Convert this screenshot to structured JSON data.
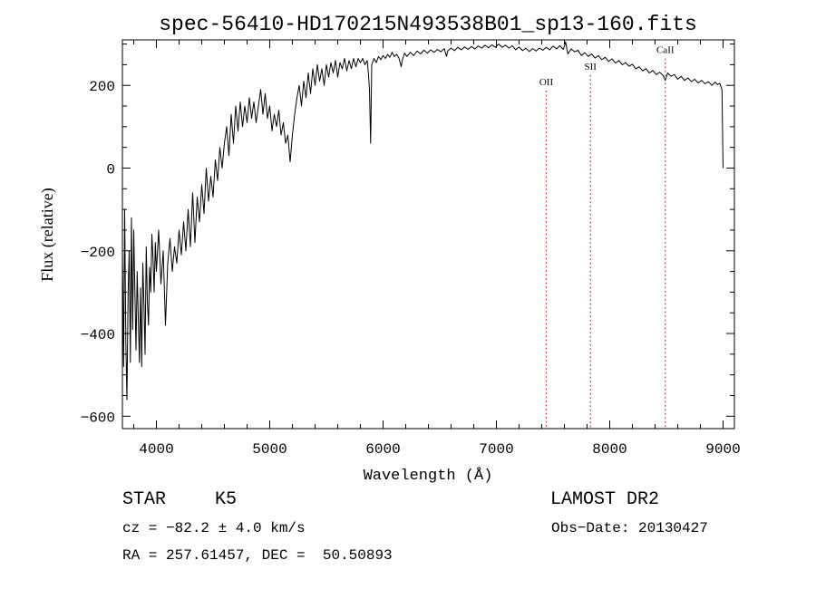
{
  "chart_data": {
    "type": "line",
    "title": "spec-56410-HD170215N493538B01_sp13-160.fits",
    "xlabel": "Wavelength (Å)",
    "ylabel": "Flux (relative)",
    "xlim": [
      3700,
      9100
    ],
    "ylim": [
      -630,
      310
    ],
    "x_ticks": [
      4000,
      5000,
      6000,
      7000,
      8000,
      9000
    ],
    "x_tick_labels": [
      "4000",
      "5000",
      "6000",
      "7000",
      "8000",
      "9000"
    ],
    "y_ticks": [
      -600,
      -400,
      -200,
      0,
      200
    ],
    "y_tick_labels": [
      "−600",
      "−400",
      "−200",
      "0",
      "200"
    ],
    "series": [
      {
        "values": [
          [
            3700,
            -200
          ],
          [
            3710,
            -480
          ],
          [
            3720,
            -100
          ],
          [
            3730,
            -420
          ],
          [
            3740,
            -560
          ],
          [
            3750,
            -300
          ],
          [
            3760,
            -200
          ],
          [
            3770,
            -470
          ],
          [
            3780,
            -120
          ],
          [
            3790,
            -390
          ],
          [
            3800,
            -150
          ],
          [
            3810,
            -300
          ],
          [
            3820,
            -440
          ],
          [
            3830,
            -250
          ],
          [
            3840,
            -360
          ],
          [
            3850,
            -470
          ],
          [
            3860,
            -290
          ],
          [
            3870,
            -480
          ],
          [
            3880,
            -230
          ],
          [
            3890,
            -330
          ],
          [
            3900,
            -450
          ],
          [
            3910,
            -190
          ],
          [
            3920,
            -320
          ],
          [
            3930,
            -380
          ],
          [
            3940,
            -240
          ],
          [
            3950,
            -300
          ],
          [
            3960,
            -160
          ],
          [
            3970,
            -220
          ],
          [
            3980,
            -300
          ],
          [
            3990,
            -180
          ],
          [
            4000,
            -250
          ],
          [
            4020,
            -150
          ],
          [
            4040,
            -280
          ],
          [
            4060,
            -200
          ],
          [
            4080,
            -380
          ],
          [
            4100,
            -230
          ],
          [
            4120,
            -170
          ],
          [
            4140,
            -250
          ],
          [
            4160,
            -190
          ],
          [
            4180,
            -230
          ],
          [
            4200,
            -150
          ],
          [
            4220,
            -210
          ],
          [
            4240,
            -130
          ],
          [
            4260,
            -200
          ],
          [
            4280,
            -100
          ],
          [
            4300,
            -190
          ],
          [
            4320,
            -60
          ],
          [
            4340,
            -180
          ],
          [
            4360,
            -70
          ],
          [
            4380,
            -130
          ],
          [
            4400,
            -40
          ],
          [
            4420,
            -110
          ],
          [
            4440,
            0
          ],
          [
            4460,
            -80
          ],
          [
            4480,
            -20
          ],
          [
            4500,
            -70
          ],
          [
            4520,
            20
          ],
          [
            4540,
            -30
          ],
          [
            4560,
            50
          ],
          [
            4580,
            0
          ],
          [
            4600,
            60
          ],
          [
            4620,
            100
          ],
          [
            4640,
            30
          ],
          [
            4660,
            130
          ],
          [
            4680,
            60
          ],
          [
            4700,
            150
          ],
          [
            4720,
            90
          ],
          [
            4740,
            160
          ],
          [
            4760,
            100
          ],
          [
            4780,
            150
          ],
          [
            4800,
            110
          ],
          [
            4820,
            170
          ],
          [
            4840,
            120
          ],
          [
            4860,
            160
          ],
          [
            4880,
            110
          ],
          [
            4900,
            150
          ],
          [
            4920,
            190
          ],
          [
            4940,
            130
          ],
          [
            4960,
            180
          ],
          [
            4980,
            120
          ],
          [
            5000,
            150
          ],
          [
            5020,
            90
          ],
          [
            5040,
            130
          ],
          [
            5060,
            100
          ],
          [
            5080,
            140
          ],
          [
            5100,
            80
          ],
          [
            5120,
            110
          ],
          [
            5140,
            60
          ],
          [
            5160,
            80
          ],
          [
            5180,
            15
          ],
          [
            5200,
            80
          ],
          [
            5220,
            130
          ],
          [
            5240,
            170
          ],
          [
            5260,
            200
          ],
          [
            5280,
            150
          ],
          [
            5300,
            210
          ],
          [
            5320,
            170
          ],
          [
            5340,
            230
          ],
          [
            5360,
            180
          ],
          [
            5380,
            240
          ],
          [
            5400,
            200
          ],
          [
            5420,
            250
          ],
          [
            5440,
            210
          ],
          [
            5460,
            240
          ],
          [
            5480,
            200
          ],
          [
            5500,
            250
          ],
          [
            5520,
            220
          ],
          [
            5540,
            255
          ],
          [
            5560,
            230
          ],
          [
            5580,
            260
          ],
          [
            5600,
            220
          ],
          [
            5620,
            255
          ],
          [
            5640,
            240
          ],
          [
            5660,
            265
          ],
          [
            5680,
            235
          ],
          [
            5700,
            260
          ],
          [
            5720,
            240
          ],
          [
            5740,
            265
          ],
          [
            5760,
            245
          ],
          [
            5780,
            265
          ],
          [
            5800,
            255
          ],
          [
            5820,
            265
          ],
          [
            5840,
            250
          ],
          [
            5860,
            260
          ],
          [
            5870,
            230
          ],
          [
            5880,
            190
          ],
          [
            5890,
            60
          ],
          [
            5900,
            250
          ],
          [
            5920,
            265
          ],
          [
            5940,
            255
          ],
          [
            5960,
            270
          ],
          [
            5980,
            262
          ],
          [
            6000,
            272
          ],
          [
            6020,
            265
          ],
          [
            6040,
            275
          ],
          [
            6060,
            268
          ],
          [
            6080,
            280
          ],
          [
            6100,
            270
          ],
          [
            6120,
            275
          ],
          [
            6140,
            266
          ],
          [
            6160,
            245
          ],
          [
            6170,
            262
          ],
          [
            6190,
            278
          ],
          [
            6210,
            270
          ],
          [
            6240,
            280
          ],
          [
            6270,
            272
          ],
          [
            6300,
            283
          ],
          [
            6330,
            276
          ],
          [
            6360,
            285
          ],
          [
            6390,
            278
          ],
          [
            6420,
            286
          ],
          [
            6450,
            280
          ],
          [
            6480,
            287
          ],
          [
            6510,
            281
          ],
          [
            6540,
            289
          ],
          [
            6560,
            270
          ],
          [
            6570,
            283
          ],
          [
            6600,
            290
          ],
          [
            6630,
            284
          ],
          [
            6660,
            292
          ],
          [
            6690,
            286
          ],
          [
            6720,
            293
          ],
          [
            6750,
            287
          ],
          [
            6780,
            294
          ],
          [
            6810,
            288
          ],
          [
            6840,
            295
          ],
          [
            6870,
            290
          ],
          [
            6900,
            297
          ],
          [
            6930,
            291
          ],
          [
            6960,
            298
          ],
          [
            6990,
            292
          ],
          [
            7020,
            300
          ],
          [
            7050,
            292
          ],
          [
            7080,
            297
          ],
          [
            7110,
            290
          ],
          [
            7140,
            296
          ],
          [
            7170,
            286
          ],
          [
            7200,
            293
          ],
          [
            7230,
            284
          ],
          [
            7260,
            290
          ],
          [
            7290,
            282
          ],
          [
            7320,
            289
          ],
          [
            7350,
            283
          ],
          [
            7380,
            290
          ],
          [
            7410,
            285
          ],
          [
            7440,
            292
          ],
          [
            7470,
            286
          ],
          [
            7500,
            295
          ],
          [
            7530,
            288
          ],
          [
            7560,
            296
          ],
          [
            7590,
            287
          ],
          [
            7610,
            305
          ],
          [
            7630,
            276
          ],
          [
            7660,
            288
          ],
          [
            7690,
            281
          ],
          [
            7720,
            285
          ],
          [
            7750,
            272
          ],
          [
            7780,
            279
          ],
          [
            7810,
            270
          ],
          [
            7840,
            276
          ],
          [
            7870,
            266
          ],
          [
            7900,
            272
          ],
          [
            7930,
            262
          ],
          [
            7960,
            268
          ],
          [
            7990,
            258
          ],
          [
            8020,
            264
          ],
          [
            8050,
            254
          ],
          [
            8080,
            260
          ],
          [
            8110,
            250
          ],
          [
            8140,
            255
          ],
          [
            8170,
            246
          ],
          [
            8200,
            251
          ],
          [
            8230,
            240
          ],
          [
            8260,
            245
          ],
          [
            8290,
            235
          ],
          [
            8320,
            240
          ],
          [
            8350,
            230
          ],
          [
            8380,
            236
          ],
          [
            8410,
            226
          ],
          [
            8440,
            232
          ],
          [
            8470,
            224
          ],
          [
            8490,
            212
          ],
          [
            8510,
            230
          ],
          [
            8540,
            222
          ],
          [
            8570,
            226
          ],
          [
            8600,
            215
          ],
          [
            8630,
            222
          ],
          [
            8660,
            212
          ],
          [
            8690,
            218
          ],
          [
            8720,
            209
          ],
          [
            8750,
            215
          ],
          [
            8780,
            206
          ],
          [
            8810,
            212
          ],
          [
            8840,
            204
          ],
          [
            8870,
            209
          ],
          [
            8900,
            200
          ],
          [
            8930,
            208
          ],
          [
            8950,
            202
          ],
          [
            8970,
            205
          ],
          [
            8990,
            190
          ],
          [
            9000,
            0
          ]
        ]
      }
    ],
    "line_markers": [
      {
        "label": "OII",
        "x": 7440,
        "label_y": 200
      },
      {
        "label": "SII",
        "x": 7830,
        "label_y": 238
      },
      {
        "label": "CaII",
        "x": 8490,
        "label_y": 278
      }
    ],
    "colors": {
      "line": "#000000",
      "marker": "#d81b1b",
      "axis": "#000000"
    }
  },
  "info": {
    "object_type": "STAR",
    "subclass": "K5",
    "survey": "LAMOST DR2",
    "redshift": "cz = −82.2 ± 4.0 km/s",
    "obs_date": "Obs−Date: 20130427",
    "coords": "RA = 257.61457, DEC =  50.50893"
  }
}
